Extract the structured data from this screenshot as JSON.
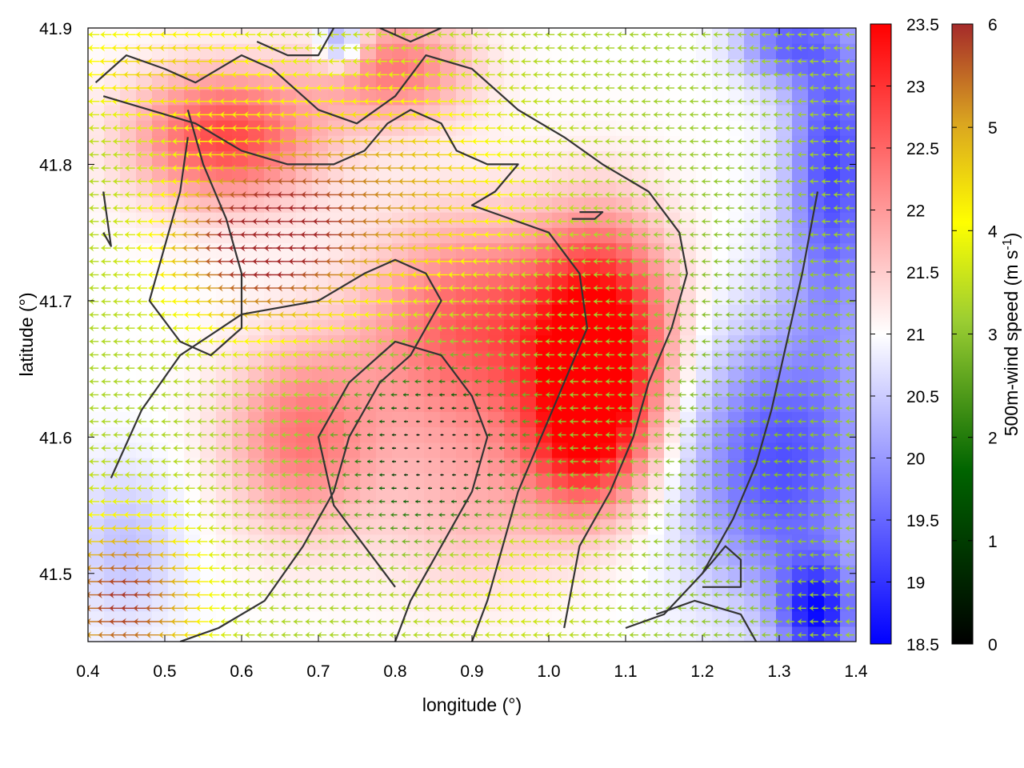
{
  "chart_data": {
    "type": "heatmap",
    "title": "",
    "xlabel": "longitude (°)",
    "ylabel": "latitude (°)",
    "xlim": [
      0.4,
      1.4
    ],
    "ylim": [
      41.45,
      41.9
    ],
    "xticks": [
      {
        "value": 0.4,
        "label": "0.4"
      },
      {
        "value": 0.5,
        "label": "0.5"
      },
      {
        "value": 0.6,
        "label": "0.6"
      },
      {
        "value": 0.7,
        "label": "0.7"
      },
      {
        "value": 0.8,
        "label": "0.8"
      },
      {
        "value": 0.9,
        "label": "0.9"
      },
      {
        "value": 1.0,
        "label": "1.0"
      },
      {
        "value": 1.1,
        "label": "1.1"
      },
      {
        "value": 1.2,
        "label": "1.2"
      },
      {
        "value": 1.3,
        "label": "1.3"
      },
      {
        "value": 1.4,
        "label": "1.4"
      }
    ],
    "yticks": [
      {
        "value": 41.5,
        "label": "41.5"
      },
      {
        "value": 41.6,
        "label": "41.6"
      },
      {
        "value": 41.7,
        "label": "41.7"
      },
      {
        "value": 41.8,
        "label": "41.8"
      },
      {
        "value": 41.9,
        "label": "41.9"
      }
    ],
    "grid": false,
    "colorbar_temperature": {
      "range": [
        18.5,
        23.5
      ],
      "ticks": [
        {
          "value": 18.5,
          "label": "18.5"
        },
        {
          "value": 19,
          "label": "19"
        },
        {
          "value": 19.5,
          "label": "19.5"
        },
        {
          "value": 20,
          "label": "20"
        },
        {
          "value": 20.5,
          "label": "20.5"
        },
        {
          "value": 21,
          "label": "21"
        },
        {
          "value": 21.5,
          "label": "21.5"
        },
        {
          "value": 22,
          "label": "22"
        },
        {
          "value": 22.5,
          "label": "22.5"
        },
        {
          "value": 23,
          "label": "23"
        },
        {
          "value": 23.5,
          "label": "23.5"
        }
      ],
      "colors": [
        "#0000ff",
        "#ffffff",
        "#ff0000"
      ]
    },
    "colorbar_wind": {
      "label_main": "500m-wind speed (m s",
      "label_sup": "-1",
      "label_end": ")",
      "range": [
        0,
        6
      ],
      "ticks": [
        {
          "value": 0,
          "label": "0"
        },
        {
          "value": 1,
          "label": "1"
        },
        {
          "value": 2,
          "label": "2"
        },
        {
          "value": 3,
          "label": "3"
        },
        {
          "value": 4,
          "label": "4"
        },
        {
          "value": 5,
          "label": "5"
        },
        {
          "value": 6,
          "label": "6"
        }
      ],
      "colors": [
        "#000000",
        "#006400",
        "#9acd32",
        "#ffff00",
        "#daa520",
        "#a52a2a"
      ]
    },
    "temperature_field": {
      "background": 21.0,
      "features": [
        {
          "lon": 0.58,
          "lat": 41.82,
          "temp": 22.8,
          "rlon": 0.12,
          "rlat": 0.05
        },
        {
          "lon": 0.8,
          "lat": 41.87,
          "temp": 22.3,
          "rlon": 0.1,
          "rlat": 0.04
        },
        {
          "lon": 0.68,
          "lat": 41.6,
          "temp": 22.3,
          "rlon": 0.1,
          "rlat": 0.07
        },
        {
          "lon": 0.9,
          "lat": 41.68,
          "temp": 22.6,
          "rlon": 0.14,
          "rlat": 0.08
        },
        {
          "lon": 1.07,
          "lat": 41.68,
          "temp": 23.4,
          "rlon": 0.09,
          "rlat": 0.08
        },
        {
          "lon": 1.05,
          "lat": 41.6,
          "temp": 22.9,
          "rlon": 0.08,
          "rlat": 0.06
        },
        {
          "lon": 0.9,
          "lat": 41.55,
          "temp": 21.6,
          "rlon": 0.12,
          "rlat": 0.07
        },
        {
          "lon": 1.3,
          "lat": 41.58,
          "temp": 19.3,
          "rlon": 0.12,
          "rlat": 0.1
        },
        {
          "lon": 1.37,
          "lat": 41.8,
          "temp": 19.2,
          "rlon": 0.06,
          "rlat": 0.12
        },
        {
          "lon": 1.35,
          "lat": 41.47,
          "temp": 19.0,
          "rlon": 0.05,
          "rlat": 0.04
        },
        {
          "lon": 0.73,
          "lat": 41.89,
          "temp": 19.7,
          "rlon": 0.03,
          "rlat": 0.02
        },
        {
          "lon": 1.3,
          "lat": 41.89,
          "temp": 19.8,
          "rlon": 0.06,
          "rlat": 0.03
        },
        {
          "lon": 0.45,
          "lat": 41.52,
          "temp": 20.4,
          "rlon": 0.07,
          "rlat": 0.06
        }
      ]
    },
    "wind_field": {
      "speed_background": 2.6,
      "direction_deg_to": 180,
      "features": [
        {
          "lon": 0.62,
          "lat": 41.74,
          "speed": 5.9,
          "rlon": 0.12,
          "rlat": 0.06
        },
        {
          "lon": 0.45,
          "lat": 41.48,
          "speed": 5.9,
          "rlon": 0.1,
          "rlat": 0.06
        },
        {
          "lon": 0.78,
          "lat": 41.78,
          "speed": 4.7,
          "rlon": 0.18,
          "rlat": 0.08
        },
        {
          "lon": 0.5,
          "lat": 41.87,
          "speed": 4.2,
          "rlon": 0.14,
          "rlat": 0.04
        },
        {
          "lon": 0.85,
          "lat": 41.59,
          "speed": 0.1,
          "rlon": 0.11,
          "rlat": 0.06
        },
        {
          "lon": 1.25,
          "lat": 41.62,
          "speed": 2.2,
          "rlon": 0.18,
          "rlat": 0.25
        },
        {
          "lon": 0.95,
          "lat": 41.5,
          "speed": 3.4,
          "rlon": 0.12,
          "rlat": 0.05
        }
      ]
    },
    "contours": [
      {
        "points": [
          [
            0.41,
            41.86
          ],
          [
            0.45,
            41.88
          ],
          [
            0.5,
            41.87
          ],
          [
            0.54,
            41.86
          ],
          [
            0.6,
            41.88
          ],
          [
            0.64,
            41.87
          ],
          [
            0.7,
            41.84
          ],
          [
            0.75,
            41.83
          ],
          [
            0.8,
            41.85
          ],
          [
            0.84,
            41.88
          ],
          [
            0.9,
            41.87
          ],
          [
            0.96,
            41.84
          ],
          [
            1.02,
            41.82
          ],
          [
            1.07,
            41.8
          ],
          [
            1.13,
            41.78
          ],
          [
            1.17,
            41.75
          ],
          [
            1.18,
            41.72
          ],
          [
            1.16,
            41.68
          ],
          [
            1.13,
            41.64
          ],
          [
            1.11,
            41.6
          ],
          [
            1.08,
            41.56
          ],
          [
            1.04,
            41.52
          ],
          [
            1.02,
            41.46
          ]
        ]
      },
      {
        "points": [
          [
            0.42,
            41.85
          ],
          [
            0.48,
            41.84
          ],
          [
            0.54,
            41.83
          ],
          [
            0.6,
            41.81
          ],
          [
            0.66,
            41.8
          ],
          [
            0.72,
            41.8
          ],
          [
            0.76,
            41.81
          ],
          [
            0.79,
            41.83
          ],
          [
            0.82,
            41.84
          ],
          [
            0.86,
            41.83
          ],
          [
            0.88,
            41.81
          ],
          [
            0.92,
            41.8
          ],
          [
            0.96,
            41.8
          ],
          [
            0.93,
            41.78
          ],
          [
            0.9,
            41.77
          ],
          [
            0.95,
            41.76
          ],
          [
            1.0,
            41.75
          ],
          [
            1.04,
            41.72
          ],
          [
            1.05,
            41.68
          ],
          [
            1.02,
            41.64
          ],
          [
            0.99,
            41.6
          ],
          [
            0.96,
            41.56
          ],
          [
            0.94,
            41.52
          ],
          [
            0.92,
            41.48
          ],
          [
            0.9,
            41.45
          ]
        ]
      },
      {
        "points": [
          [
            0.8,
            41.45
          ],
          [
            0.82,
            41.48
          ],
          [
            0.84,
            41.5
          ],
          [
            0.87,
            41.53
          ],
          [
            0.9,
            41.56
          ],
          [
            0.92,
            41.6
          ],
          [
            0.9,
            41.63
          ],
          [
            0.86,
            41.66
          ],
          [
            0.8,
            41.67
          ],
          [
            0.74,
            41.64
          ],
          [
            0.7,
            41.6
          ],
          [
            0.72,
            41.55
          ],
          [
            0.76,
            41.52
          ],
          [
            0.8,
            41.49
          ]
        ]
      },
      {
        "points": [
          [
            0.43,
            41.57
          ],
          [
            0.47,
            41.62
          ],
          [
            0.52,
            41.66
          ],
          [
            0.6,
            41.69
          ],
          [
            0.7,
            41.7
          ],
          [
            0.76,
            41.72
          ],
          [
            0.8,
            41.73
          ],
          [
            0.84,
            41.72
          ],
          [
            0.86,
            41.7
          ],
          [
            0.82,
            41.66
          ],
          [
            0.78,
            41.64
          ],
          [
            0.74,
            41.6
          ],
          [
            0.72,
            41.56
          ],
          [
            0.68,
            41.52
          ],
          [
            0.63,
            41.48
          ],
          [
            0.57,
            41.46
          ],
          [
            0.52,
            41.45
          ]
        ]
      },
      {
        "points": [
          [
            0.53,
            41.84
          ],
          [
            0.55,
            41.8
          ],
          [
            0.58,
            41.76
          ],
          [
            0.6,
            41.72
          ],
          [
            0.6,
            41.68
          ],
          [
            0.56,
            41.66
          ],
          [
            0.52,
            41.67
          ],
          [
            0.48,
            41.7
          ],
          [
            0.5,
            41.74
          ],
          [
            0.52,
            41.78
          ],
          [
            0.53,
            41.82
          ]
        ]
      },
      {
        "points": [
          [
            0.42,
            41.78
          ],
          [
            0.43,
            41.74
          ],
          [
            0.42,
            41.75
          ]
        ]
      },
      {
        "points": [
          [
            1.35,
            41.78
          ],
          [
            1.33,
            41.72
          ],
          [
            1.31,
            41.67
          ],
          [
            1.29,
            41.62
          ],
          [
            1.27,
            41.58
          ],
          [
            1.24,
            41.54
          ],
          [
            1.2,
            41.5
          ],
          [
            1.15,
            41.47
          ],
          [
            1.1,
            41.46
          ]
        ]
      },
      {
        "points": [
          [
            1.2,
            41.5
          ],
          [
            1.23,
            41.52
          ],
          [
            1.25,
            41.51
          ],
          [
            1.25,
            41.49
          ],
          [
            1.2,
            41.49
          ]
        ]
      },
      {
        "points": [
          [
            1.14,
            41.47
          ],
          [
            1.19,
            41.48
          ],
          [
            1.25,
            41.47
          ],
          [
            1.27,
            41.45
          ]
        ]
      },
      {
        "points": [
          [
            0.62,
            41.89
          ],
          [
            0.66,
            41.88
          ],
          [
            0.7,
            41.88
          ],
          [
            0.72,
            41.9
          ]
        ]
      },
      {
        "points": [
          [
            0.78,
            41.9
          ],
          [
            0.82,
            41.89
          ],
          [
            0.86,
            41.9
          ]
        ]
      },
      {
        "points": [
          [
            1.03,
            41.76
          ],
          [
            1.06,
            41.76
          ],
          [
            1.07,
            41.765
          ],
          [
            1.04,
            41.765
          ]
        ]
      }
    ]
  }
}
